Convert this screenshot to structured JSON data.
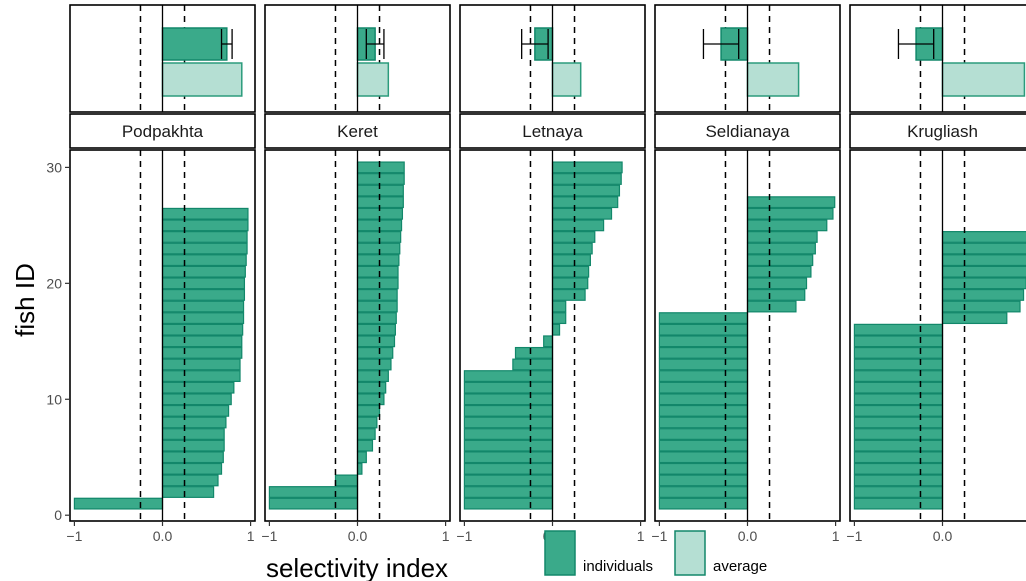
{
  "chart_data": {
    "type": "bar",
    "orientation": "horizontal",
    "xlabel": "selectivity index",
    "ylabel": "fish ID",
    "xlim": [
      -1.05,
      1.05
    ],
    "ylim": [
      -0.5,
      31.5
    ],
    "xticks": [
      -1,
      0,
      1
    ],
    "xtick_labels": [
      "−1",
      "0.0",
      "1"
    ],
    "yticks": [
      0,
      10,
      20,
      30
    ],
    "reference_lines": [
      -0.25,
      0.25
    ],
    "colors": {
      "individuals": "#3aaa8a",
      "individuals_edge": "#12876a",
      "average": "#b5dfd3",
      "average_edge": "#2b9b7c"
    },
    "legend": [
      {
        "name": "individuals",
        "color": "#3aaa8a"
      },
      {
        "name": "average",
        "color": "#b5dfd3"
      }
    ],
    "panels": [
      {
        "label": "Podpakhta",
        "fish": [
          1,
          2,
          3,
          4,
          5,
          6,
          7,
          8,
          9,
          10,
          11,
          12,
          13,
          14,
          15,
          16,
          17,
          18,
          19,
          20,
          21,
          22,
          23,
          24,
          25,
          26
        ],
        "individuals": [
          -1.0,
          0.58,
          0.63,
          0.67,
          0.69,
          0.7,
          0.7,
          0.72,
          0.75,
          0.78,
          0.81,
          0.88,
          0.88,
          0.9,
          0.9,
          0.91,
          0.92,
          0.92,
          0.93,
          0.93,
          0.94,
          0.95,
          0.96,
          0.96,
          0.97,
          0.97
        ],
        "mean": 0.73,
        "error": 0.06,
        "average": 0.9
      },
      {
        "label": "Keret",
        "fish": [
          1,
          2,
          3,
          4,
          5,
          6,
          7,
          8,
          9,
          10,
          11,
          12,
          13,
          14,
          15,
          16,
          17,
          18,
          19,
          20,
          21,
          22,
          23,
          24,
          25,
          26,
          27,
          28,
          29,
          30
        ],
        "individuals": [
          -1.0,
          -1.0,
          -0.25,
          0.05,
          0.1,
          0.17,
          0.2,
          0.22,
          0.25,
          0.3,
          0.32,
          0.35,
          0.38,
          0.4,
          0.42,
          0.43,
          0.44,
          0.45,
          0.45,
          0.46,
          0.46,
          0.47,
          0.48,
          0.49,
          0.5,
          0.51,
          0.52,
          0.52,
          0.53,
          0.53
        ],
        "mean": 0.2,
        "error": 0.1,
        "average": 0.35
      },
      {
        "label": "Letnaya",
        "fish": [
          1,
          2,
          3,
          4,
          5,
          6,
          7,
          8,
          9,
          10,
          11,
          12,
          13,
          14,
          15,
          16,
          17,
          18,
          19,
          20,
          21,
          22,
          23,
          24,
          25,
          26,
          27,
          28,
          29,
          30
        ],
        "individuals": [
          -1.0,
          -1.0,
          -1.0,
          -1.0,
          -1.0,
          -1.0,
          -1.0,
          -1.0,
          -1.0,
          -1.0,
          -1.0,
          -1.0,
          -0.45,
          -0.42,
          -0.1,
          0.08,
          0.15,
          0.15,
          0.37,
          0.4,
          0.41,
          0.43,
          0.45,
          0.48,
          0.58,
          0.67,
          0.74,
          0.76,
          0.78,
          0.79
        ],
        "mean": -0.2,
        "error": 0.15,
        "average": 0.32
      },
      {
        "label": "Seldianaya",
        "fish": [
          1,
          2,
          3,
          4,
          5,
          6,
          7,
          8,
          9,
          10,
          11,
          12,
          13,
          14,
          15,
          16,
          17,
          18,
          19,
          20,
          21,
          22,
          23,
          24,
          25,
          26,
          27
        ],
        "individuals": [
          -1.0,
          -1.0,
          -1.0,
          -1.0,
          -1.0,
          -1.0,
          -1.0,
          -1.0,
          -1.0,
          -1.0,
          -1.0,
          -1.0,
          -1.0,
          -1.0,
          -1.0,
          -1.0,
          -1.0,
          0.55,
          0.65,
          0.67,
          0.72,
          0.74,
          0.77,
          0.79,
          0.9,
          0.97,
          0.99
        ],
        "mean": -0.3,
        "error": 0.2,
        "average": 0.58
      },
      {
        "label": "Krugliash",
        "fish": [
          1,
          2,
          3,
          4,
          5,
          6,
          7,
          8,
          9,
          10,
          11,
          12,
          13,
          14,
          15,
          16,
          17,
          18,
          19,
          20,
          21,
          22,
          23,
          24
        ],
        "individuals": [
          -1.0,
          -1.0,
          -1.0,
          -1.0,
          -1.0,
          -1.0,
          -1.0,
          -1.0,
          -1.0,
          -1.0,
          -1.0,
          -1.0,
          -1.0,
          -1.0,
          -1.0,
          -1.0,
          0.73,
          0.88,
          0.92,
          0.95,
          0.97,
          0.98,
          1.0,
          1.0
        ],
        "mean": -0.3,
        "error": 0.2,
        "average": 0.93
      }
    ]
  }
}
